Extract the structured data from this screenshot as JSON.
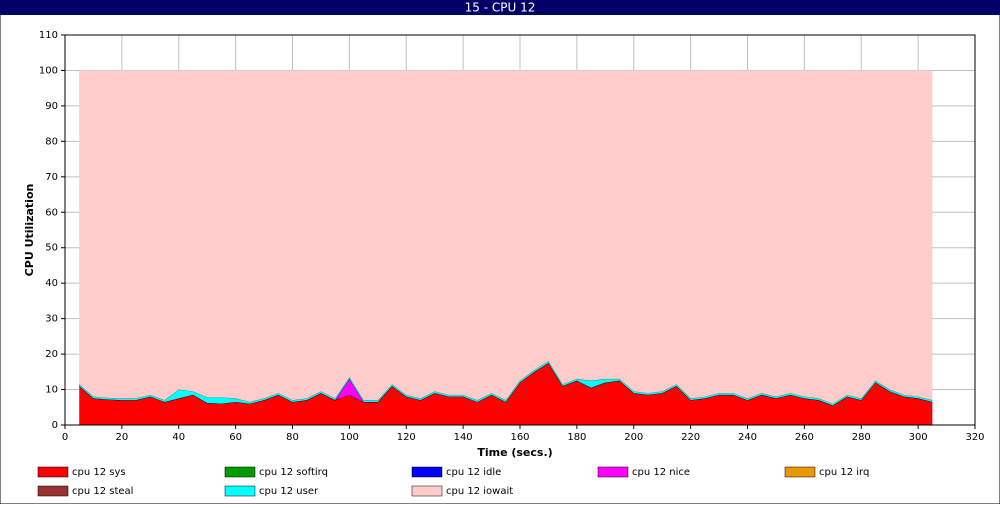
{
  "chart_data": {
    "type": "stacked_area",
    "title": "15 - CPU 12",
    "x_label": "Time (secs.)",
    "y_label": "CPU Utilization",
    "x": [
      5,
      10,
      15,
      20,
      25,
      30,
      35,
      40,
      45,
      50,
      55,
      60,
      65,
      70,
      75,
      80,
      85,
      90,
      95,
      100,
      105,
      110,
      115,
      120,
      125,
      130,
      135,
      140,
      145,
      150,
      155,
      160,
      165,
      170,
      175,
      180,
      185,
      190,
      195,
      200,
      205,
      210,
      215,
      220,
      225,
      230,
      235,
      240,
      245,
      250,
      255,
      260,
      265,
      270,
      275,
      280,
      285,
      290,
      295,
      300,
      305
    ],
    "xlim": [
      0,
      320
    ],
    "xticks": [
      0,
      20,
      40,
      60,
      80,
      100,
      120,
      140,
      160,
      180,
      200,
      220,
      240,
      260,
      280,
      300,
      320
    ],
    "ylim": [
      0,
      110
    ],
    "yticks": [
      0,
      10,
      20,
      30,
      40,
      50,
      60,
      70,
      80,
      90,
      100,
      110
    ],
    "grid": true,
    "series": [
      {
        "name": "cpu 12 sys",
        "color": "#ff0000",
        "values": [
          11,
          7.5,
          7.2,
          7,
          7,
          8,
          6.5,
          7.5,
          8.5,
          6.2,
          6,
          6.5,
          6,
          7,
          8.5,
          6.5,
          7,
          9,
          7,
          8.5,
          6.5,
          6.5,
          11,
          8,
          7,
          9,
          8,
          8,
          6.5,
          8.5,
          6.5,
          12,
          15,
          17.5,
          11,
          12.5,
          10.5,
          12,
          12.5,
          9,
          8.5,
          9,
          11,
          7,
          7.5,
          8.5,
          8.5,
          7,
          8.5,
          7.5,
          8.5,
          7.5,
          7,
          5.5,
          8,
          7,
          12,
          9.5,
          8,
          7.5,
          6.5
        ]
      },
      {
        "name": "cpu 12 softirq",
        "color": "#009900",
        "values": [
          0,
          0,
          0,
          0,
          0,
          0,
          0,
          0,
          0,
          0,
          0,
          0,
          0,
          0,
          0,
          0,
          0,
          0,
          0,
          0,
          0,
          0,
          0,
          0,
          0,
          0,
          0,
          0,
          0,
          0,
          0,
          0,
          0,
          0,
          0,
          0,
          0,
          0,
          0,
          0,
          0,
          0,
          0,
          0,
          0,
          0,
          0,
          0,
          0,
          0,
          0,
          0,
          0,
          0,
          0,
          0,
          0,
          0,
          0,
          0,
          0
        ]
      },
      {
        "name": "cpu 12 idle",
        "color": "#0000ff",
        "values": [
          0,
          0,
          0,
          0,
          0,
          0,
          0,
          0,
          0,
          0,
          0,
          0,
          0,
          0,
          0,
          0,
          0,
          0,
          0,
          0,
          0,
          0,
          0,
          0,
          0,
          0,
          0,
          0,
          0,
          0,
          0,
          0,
          0,
          0,
          0,
          0,
          0,
          0,
          0,
          0,
          0,
          0,
          0,
          0,
          0,
          0,
          0,
          0,
          0,
          0,
          0,
          0,
          0,
          0,
          0,
          0,
          0,
          0,
          0,
          0,
          0
        ]
      },
      {
        "name": "cpu 12 nice",
        "color": "#ff00ff",
        "values": [
          0,
          0,
          0,
          0,
          0,
          0,
          0,
          0,
          0,
          0,
          0,
          0,
          0,
          0,
          0,
          0,
          0,
          0,
          0,
          4.5,
          0,
          0,
          0,
          0,
          0,
          0,
          0,
          0,
          0,
          0,
          0,
          0,
          0,
          0,
          0,
          0,
          0,
          0,
          0,
          0,
          0,
          0,
          0,
          0,
          0,
          0,
          0,
          0,
          0,
          0,
          0,
          0,
          0,
          0,
          0,
          0,
          0,
          0,
          0,
          0,
          0
        ]
      },
      {
        "name": "cpu 12 irq",
        "color": "#e69900",
        "values": [
          0,
          0,
          0,
          0,
          0,
          0,
          0,
          0,
          0,
          0,
          0,
          0,
          0,
          0,
          0,
          0,
          0,
          0,
          0,
          0,
          0,
          0,
          0,
          0,
          0,
          0,
          0,
          0,
          0,
          0,
          0,
          0,
          0,
          0,
          0,
          0,
          0,
          0,
          0,
          0,
          0,
          0,
          0,
          0,
          0,
          0,
          0,
          0,
          0,
          0,
          0,
          0,
          0,
          0,
          0,
          0,
          0,
          0,
          0,
          0,
          0
        ]
      },
      {
        "name": "cpu 12 steal",
        "color": "#993333",
        "values": [
          0,
          0,
          0,
          0,
          0,
          0,
          0,
          0,
          0,
          0,
          0,
          0,
          0,
          0,
          0,
          0,
          0,
          0,
          0,
          0,
          0,
          0,
          0,
          0,
          0,
          0,
          0,
          0,
          0,
          0,
          0,
          0,
          0,
          0,
          0,
          0,
          0,
          0,
          0,
          0,
          0,
          0,
          0,
          0,
          0,
          0,
          0,
          0,
          0,
          0,
          0,
          0,
          0,
          0,
          0,
          0,
          0,
          0,
          0,
          0,
          0
        ]
      },
      {
        "name": "cpu 12 user",
        "color": "#00ffff",
        "values": [
          0.5,
          0.5,
          0.5,
          0.5,
          0.5,
          0.5,
          0.5,
          2.5,
          1,
          1.6,
          1.8,
          1,
          0.5,
          0.5,
          0.5,
          0.5,
          0.5,
          0.5,
          0.5,
          0.5,
          0.5,
          0.5,
          0.5,
          0.5,
          0.5,
          0.5,
          0.5,
          0.5,
          0.5,
          0.5,
          0.5,
          0.5,
          0.5,
          0.5,
          0.5,
          0.5,
          2,
          1,
          0.5,
          0.5,
          0.5,
          0.5,
          0.5,
          0.5,
          0.5,
          0.5,
          0.5,
          0.5,
          0.5,
          0.5,
          0.5,
          0.5,
          0.5,
          0.5,
          0.5,
          0.5,
          0.5,
          0.5,
          0.5,
          0.5,
          0.5
        ]
      },
      {
        "name": "cpu 12 iowait",
        "color": "#ffcccc",
        "values": [
          88.5,
          92,
          92.3,
          92.5,
          92.5,
          91.5,
          93,
          90,
          90.5,
          92.2,
          92.2,
          92.5,
          93.5,
          92.5,
          91,
          93,
          92.5,
          90.5,
          92.5,
          86.5,
          93,
          93,
          88.5,
          91.5,
          92.5,
          90.5,
          91.5,
          91.5,
          93,
          91,
          93,
          87.5,
          84.5,
          82,
          88.5,
          87,
          87.5,
          87,
          87,
          90.5,
          91,
          90.5,
          88.5,
          92.5,
          92,
          91,
          91,
          92.5,
          91,
          92,
          91,
          92,
          92.5,
          94,
          91.5,
          92.5,
          87.5,
          90,
          91.5,
          92,
          93
        ]
      }
    ]
  }
}
